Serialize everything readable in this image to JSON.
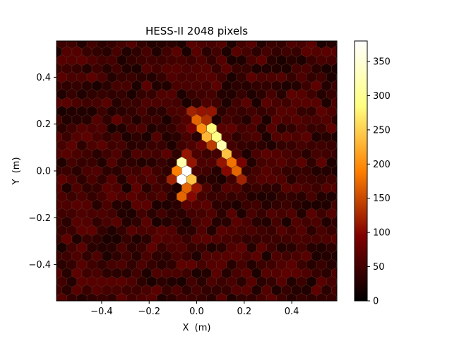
{
  "chart_data": {
    "type": "heatmap",
    "title": "HESS-II 2048 pixels",
    "xlabel": "X  (m)",
    "ylabel": "Y  (m)",
    "xlim": [
      -0.59,
      0.59
    ],
    "ylim": [
      -0.555,
      0.555
    ],
    "xticks": [
      {
        "value": -0.4,
        "label": "−0.4"
      },
      {
        "value": -0.2,
        "label": "−0.2"
      },
      {
        "value": 0.0,
        "label": "0.0"
      },
      {
        "value": 0.2,
        "label": "0.2"
      },
      {
        "value": 0.4,
        "label": "0.4"
      }
    ],
    "yticks": [
      {
        "value": -0.4,
        "label": "−0.4"
      },
      {
        "value": -0.2,
        "label": "−0.2"
      },
      {
        "value": 0.0,
        "label": "0.0"
      },
      {
        "value": 0.2,
        "label": "0.2"
      },
      {
        "value": 0.4,
        "label": "0.4"
      }
    ],
    "colorbar": {
      "colormap": "afmhot",
      "range": [
        0,
        380
      ],
      "ticks": [
        {
          "value": 0,
          "label": "0"
        },
        {
          "value": 50,
          "label": "50"
        },
        {
          "value": 100,
          "label": "100"
        },
        {
          "value": 150,
          "label": "150"
        },
        {
          "value": 200,
          "label": "200"
        },
        {
          "value": 250,
          "label": "250"
        },
        {
          "value": 300,
          "label": "300"
        },
        {
          "value": 350,
          "label": "350"
        }
      ]
    },
    "hex_pitch": 0.042,
    "background_level": [
      20,
      70
    ],
    "bright_pixels": [
      {
        "x": -0.07,
        "y": 0.02,
        "value": 320
      },
      {
        "x": -0.05,
        "y": -0.015,
        "value": 380
      },
      {
        "x": -0.03,
        "y": -0.05,
        "value": 240
      },
      {
        "x": -0.09,
        "y": -0.015,
        "value": 190
      },
      {
        "x": -0.06,
        "y": -0.085,
        "value": 170
      },
      {
        "x": -0.04,
        "y": 0.05,
        "value": 110
      },
      {
        "x": -0.01,
        "y": -0.085,
        "value": 110
      },
      {
        "x": -0.03,
        "y": -0.12,
        "value": 100
      },
      {
        "x": -0.1,
        "y": -0.05,
        "value": 120
      },
      {
        "x": 0.0,
        "y": 0.26,
        "value": 120
      },
      {
        "x": 0.04,
        "y": 0.26,
        "value": 110
      },
      {
        "x": 0.01,
        "y": 0.225,
        "value": 170
      },
      {
        "x": 0.05,
        "y": 0.225,
        "value": 130
      },
      {
        "x": 0.03,
        "y": 0.19,
        "value": 200
      },
      {
        "x": 0.07,
        "y": 0.19,
        "value": 280
      },
      {
        "x": 0.05,
        "y": 0.155,
        "value": 230
      },
      {
        "x": 0.09,
        "y": 0.155,
        "value": 290
      },
      {
        "x": 0.07,
        "y": 0.12,
        "value": 140
      },
      {
        "x": 0.11,
        "y": 0.12,
        "value": 320
      },
      {
        "x": 0.13,
        "y": 0.085,
        "value": 240
      },
      {
        "x": 0.15,
        "y": 0.05,
        "value": 180
      },
      {
        "x": 0.11,
        "y": 0.05,
        "value": 110
      },
      {
        "x": 0.17,
        "y": 0.015,
        "value": 170
      },
      {
        "x": 0.19,
        "y": -0.02,
        "value": 120
      },
      {
        "x": 0.14,
        "y": 0.0,
        "value": 100
      },
      {
        "x": 0.2,
        "y": 0.04,
        "value": 90
      },
      {
        "x": 0.03,
        "y": 0.11,
        "value": 80
      },
      {
        "x": -0.01,
        "y": 0.18,
        "value": 90
      }
    ]
  }
}
